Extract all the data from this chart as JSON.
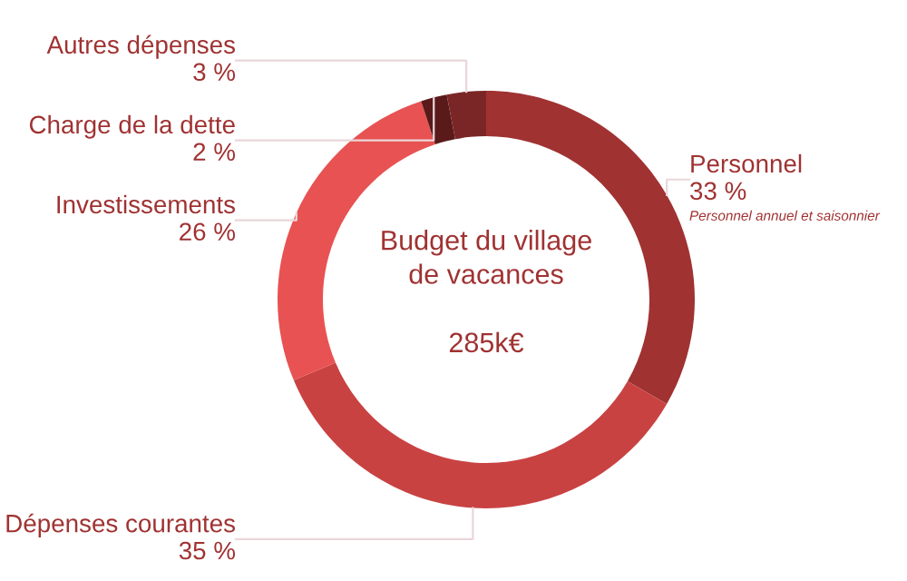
{
  "chart_data": {
    "type": "donut",
    "title": "Budget du village de vacances",
    "categories": [
      "Personnel",
      "Dépenses courantes",
      "Investissements",
      "Charge de la dette",
      "Autres dépenses"
    ],
    "values": [
      33,
      35,
      26,
      2,
      3
    ],
    "value_labels": [
      "33 %",
      "35 %",
      "26 %",
      "2 %",
      "3 %"
    ],
    "colors": [
      "#a03232",
      "#c94242",
      "#e85252",
      "#5a1a1a",
      "#7a2626"
    ],
    "annotations": [
      "285k€",
      {
        "text": "Personnel annuel et saisonnier",
        "x": "Personnel"
      }
    ]
  }
}
